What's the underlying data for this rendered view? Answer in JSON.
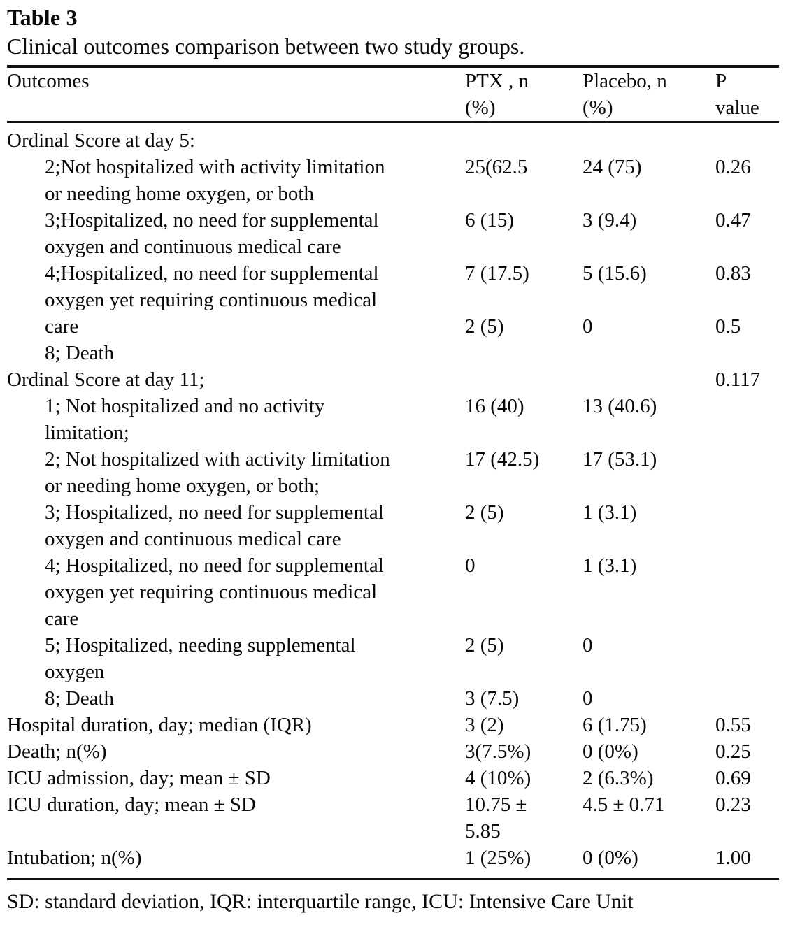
{
  "title": "Table 3",
  "caption": "Clinical outcomes comparison between two study groups.",
  "footnote": "SD: standard deviation, IQR: interquartile range, ICU: Intensive Care Unit",
  "colors": {
    "background": "#ffffff",
    "text": "#0a0a0a",
    "rule": "#141414"
  },
  "table": {
    "headers": {
      "outcomes": "Outcomes",
      "ptx": "PTX , n\n(%)",
      "placebo": "Placebo, n\n(%)",
      "p_value": "P\nvalue"
    },
    "rows": [
      {
        "label": "Ordinal Score at day 5:",
        "indent": 0,
        "ptx": "",
        "placebo": "",
        "p": ""
      },
      {
        "label": "2;Not hospitalized with activity limitation\nor needing home oxygen, or both",
        "indent": 1,
        "ptx": "25(62.5",
        "placebo": "24 (75)",
        "p": "0.26"
      },
      {
        "label": "3;Hospitalized, no need for supplemental\noxygen and continuous medical care",
        "indent": 1,
        "ptx": "6 (15)",
        "placebo": "3 (9.4)",
        "p": "0.47"
      },
      {
        "label": "4;Hospitalized, no need for supplemental\noxygen yet requiring continuous medical",
        "indent": 1,
        "ptx": "7 (17.5)",
        "placebo": "5 (15.6)",
        "p": "0.83"
      },
      {
        "label": "care",
        "indent": 1,
        "ptx": "2 (5)",
        "placebo": "0",
        "p": "0.5"
      },
      {
        "label": "8; Death",
        "indent": 1,
        "ptx": "",
        "placebo": "",
        "p": ""
      },
      {
        "label": "Ordinal Score at day 11;",
        "indent": 0,
        "ptx": "",
        "placebo": "",
        "p": "0.117"
      },
      {
        "label": "1; Not hospitalized and no activity\nlimitation;",
        "indent": 1,
        "ptx": "16 (40)",
        "placebo": "13 (40.6)",
        "p": ""
      },
      {
        "label": "2; Not hospitalized with activity limitation\nor needing home oxygen, or both;",
        "indent": 1,
        "ptx": "17 (42.5)",
        "placebo": "17 (53.1)",
        "p": ""
      },
      {
        "label": "3; Hospitalized, no need for supplemental\noxygen and continuous medical care",
        "indent": 1,
        "ptx": "2 (5)",
        "placebo": "1 (3.1)",
        "p": ""
      },
      {
        "label": "4; Hospitalized, no need for supplemental\noxygen yet requiring continuous medical\ncare",
        "indent": 1,
        "ptx": "0",
        "placebo": "1 (3.1)",
        "p": ""
      },
      {
        "label": "5; Hospitalized, needing supplemental\noxygen",
        "indent": 1,
        "ptx": "2 (5)",
        "placebo": "0",
        "p": ""
      },
      {
        "label": "8; Death",
        "indent": 1,
        "ptx": "3 (7.5)",
        "placebo": "0",
        "p": ""
      },
      {
        "label": "Hospital duration, day; median (IQR)",
        "indent": 0,
        "ptx": "3 (2)",
        "placebo": "6 (1.75)",
        "p": "0.55"
      },
      {
        "label": "Death; n(%)",
        "indent": 0,
        "ptx": "3(7.5%)",
        "placebo": "0 (0%)",
        "p": "0.25"
      },
      {
        "label": "ICU admission, day; mean ± SD",
        "indent": 0,
        "ptx": "4 (10%)",
        "placebo": "2 (6.3%)",
        "p": "0.69"
      },
      {
        "label": "ICU duration, day; mean ± SD",
        "indent": 0,
        "ptx": "10.75 ±\n5.85",
        "placebo": "4.5 ± 0.71",
        "p": "0.23"
      },
      {
        "label": "Intubation; n(%)",
        "indent": 0,
        "ptx": "1 (25%)",
        "placebo": "0 (0%)",
        "p": "1.00"
      }
    ]
  }
}
